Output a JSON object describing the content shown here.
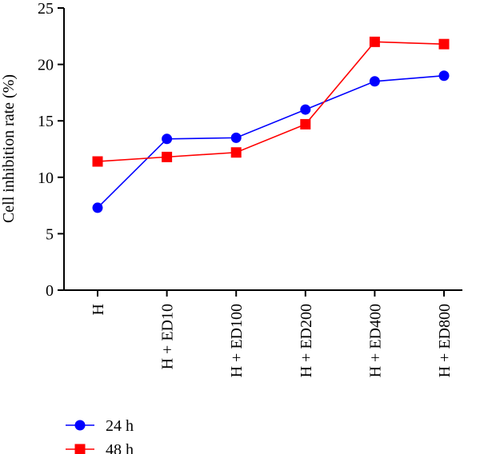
{
  "chart_data": {
    "type": "line",
    "ylabel": "Cell inhibition rate (%)",
    "xlabel": "",
    "categories": [
      "H",
      "H + ED10",
      "H + ED100",
      "H + ED200",
      "H + ED400",
      "H + ED800"
    ],
    "ylim": [
      0,
      25
    ],
    "yticks": [
      0,
      5,
      10,
      15,
      20,
      25
    ],
    "grid": false,
    "legend_position": "bottom-left",
    "series": [
      {
        "name": "24 h",
        "color": "#0000ff",
        "marker": "circle",
        "values": [
          7.3,
          13.4,
          13.5,
          16.0,
          18.5,
          19.0
        ]
      },
      {
        "name": "48 h",
        "color": "#ff0000",
        "marker": "square",
        "values": [
          11.4,
          11.8,
          12.2,
          14.7,
          22.0,
          21.8
        ]
      }
    ]
  }
}
